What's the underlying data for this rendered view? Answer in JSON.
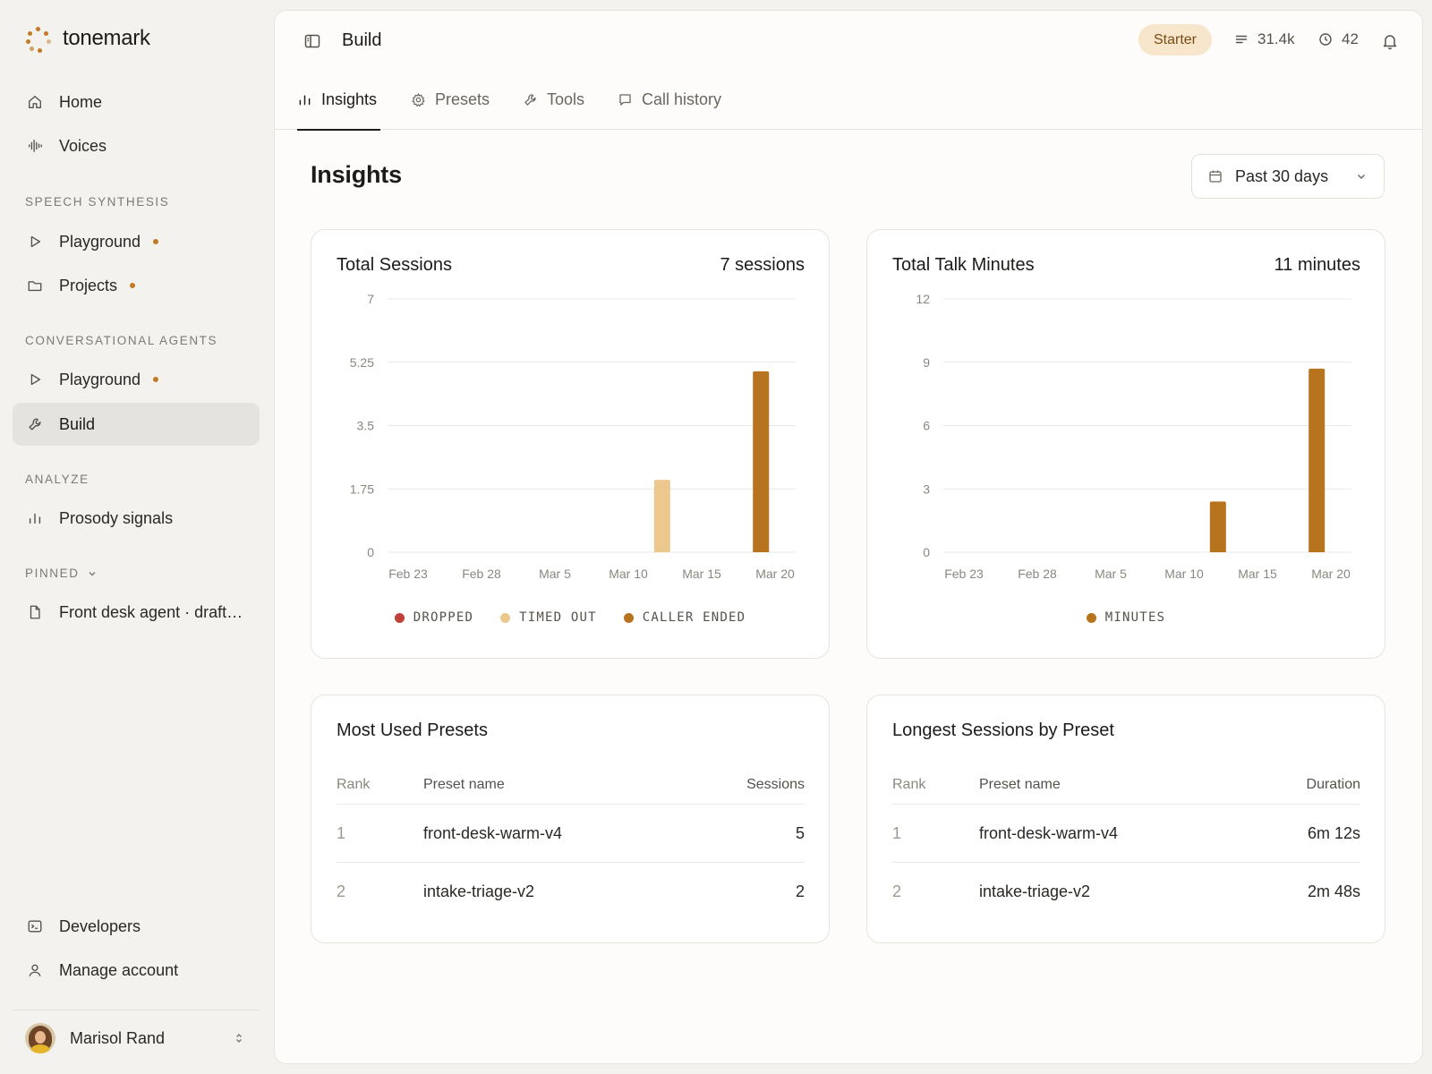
{
  "brand": {
    "name": "tonemark"
  },
  "sidebar": {
    "primary": [
      {
        "label": "Home",
        "icon": "home-icon"
      },
      {
        "label": "Voices",
        "icon": "waveform-icon"
      }
    ],
    "sections": [
      {
        "label": "SPEECH SYNTHESIS",
        "items": [
          {
            "label": "Playground",
            "icon": "play-icon",
            "badge": true
          },
          {
            "label": "Projects",
            "icon": "folder-icon",
            "badge": true
          }
        ]
      },
      {
        "label": "CONVERSATIONAL AGENTS",
        "items": [
          {
            "label": "Playground",
            "icon": "play-icon",
            "badge": true
          },
          {
            "label": "Build",
            "icon": "wrench-icon",
            "active": true
          }
        ]
      },
      {
        "label": "ANALYZE",
        "items": [
          {
            "label": "Prosody signals",
            "icon": "bar-chart-icon"
          }
        ]
      },
      {
        "label": "PINNED",
        "items": [
          {
            "label": "Front desk agent · draft…",
            "icon": "file-icon"
          }
        ]
      }
    ],
    "footer": [
      {
        "label": "Developers",
        "icon": "terminal-icon"
      },
      {
        "label": "Manage account",
        "icon": "user-icon"
      }
    ],
    "user": {
      "name": "Marisol Rand"
    }
  },
  "header": {
    "crumb": "Build",
    "plan": "Starter",
    "credits": "31.4k",
    "minutes": "42"
  },
  "tabs": [
    {
      "label": "Insights",
      "icon": "bar-chart-icon",
      "active": true
    },
    {
      "label": "Presets",
      "icon": "gear-icon"
    },
    {
      "label": "Tools",
      "icon": "wrench-icon"
    },
    {
      "label": "Call history",
      "icon": "chat-icon"
    }
  ],
  "page": {
    "title": "Insights",
    "range": "Past 30 days"
  },
  "colors": {
    "accent": "#c27a26",
    "dropped": "#c0413a",
    "timed_out": "#ecc78e",
    "caller_ended": "#b8731f",
    "minutes": "#b8731f"
  },
  "cards": {
    "sessions": {
      "title": "Total Sessions",
      "total": "7 sessions"
    },
    "minutes": {
      "title": "Total Talk Minutes",
      "total": "11 minutes"
    }
  },
  "chart_data": [
    {
      "type": "bar",
      "title": "Total Sessions",
      "x_ticks": [
        "Feb 23",
        "Feb 28",
        "Mar 5",
        "Mar 10",
        "Mar 15",
        "Mar 20"
      ],
      "y_ticks": [
        "0",
        "1.75",
        "3.5",
        "5.25",
        "7"
      ],
      "ylim": [
        0,
        7
      ],
      "grid": true,
      "legend_position": "bottom",
      "series": [
        {
          "name": "DROPPED",
          "color": "#c0413a",
          "points": []
        },
        {
          "name": "TIMED OUT",
          "color": "#ecc78e",
          "points": [
            {
              "x": "Mar 12",
              "y": 2
            }
          ]
        },
        {
          "name": "CALLER ENDED",
          "color": "#b8731f",
          "points": [
            {
              "x": "Mar 19",
              "y": 5
            }
          ]
        }
      ]
    },
    {
      "type": "bar",
      "title": "Total Talk Minutes",
      "x_ticks": [
        "Feb 23",
        "Feb 28",
        "Mar 5",
        "Mar 10",
        "Mar 15",
        "Mar 20"
      ],
      "y_ticks": [
        "0",
        "3",
        "6",
        "9",
        "12"
      ],
      "ylim": [
        0,
        12
      ],
      "grid": true,
      "legend_position": "bottom",
      "series": [
        {
          "name": "MINUTES",
          "color": "#b8731f",
          "points": [
            {
              "x": "Mar 12",
              "y": 2.4
            },
            {
              "x": "Mar 19",
              "y": 8.7
            }
          ]
        }
      ]
    }
  ],
  "tables": {
    "presets": {
      "title": "Most Used Presets",
      "headers": [
        "Rank",
        "Preset name",
        "Sessions"
      ],
      "rows": [
        [
          "1",
          "front-desk-warm-v4",
          "5"
        ],
        [
          "2",
          "intake-triage-v2",
          "2"
        ]
      ]
    },
    "longest": {
      "title": "Longest Sessions by Preset",
      "headers": [
        "Rank",
        "Preset name",
        "Duration"
      ],
      "rows": [
        [
          "1",
          "front-desk-warm-v4",
          "6m 12s"
        ],
        [
          "2",
          "intake-triage-v2",
          "2m 48s"
        ]
      ]
    }
  }
}
